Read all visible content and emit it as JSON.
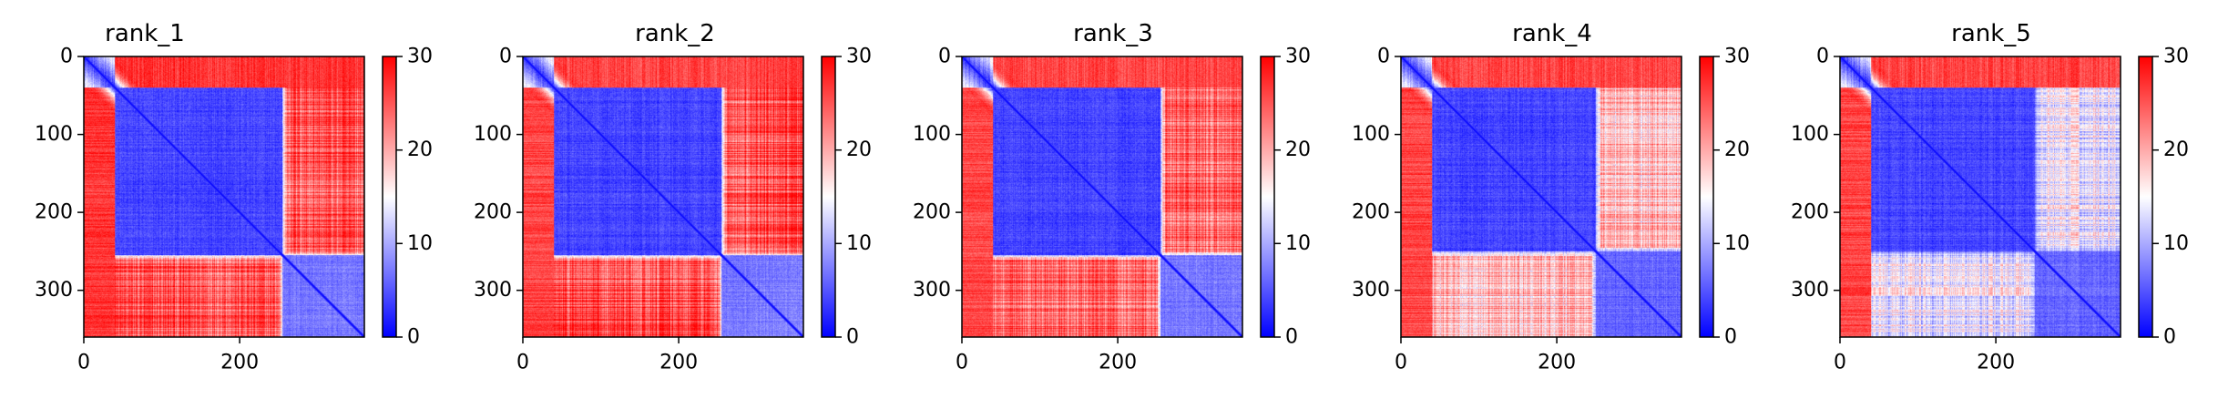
{
  "figure": {
    "colormap": "bwr",
    "colors": {
      "low": "#0000ff",
      "mid": "#ffffff",
      "high": "#ff0000",
      "axis": "#000000"
    }
  },
  "chart_data": [
    {
      "type": "heatmap",
      "title": "rank_1",
      "xlabel": "",
      "ylabel": "",
      "n": 360,
      "xlim": [
        0,
        360
      ],
      "ylim": [
        360,
        0
      ],
      "x_ticks": [
        0,
        200
      ],
      "y_ticks": [
        0,
        100,
        200,
        300
      ],
      "colorbar": {
        "min": 0,
        "max": 30,
        "ticks": [
          0,
          10,
          20,
          30
        ]
      },
      "domain_boundaries": [
        40,
        255
      ],
      "blocks": {
        "core": 4,
        "tail": 7,
        "cross_core": 25,
        "core_tail": 27,
        "cross_tail": 25
      },
      "grid": false
    },
    {
      "type": "heatmap",
      "title": "rank_2",
      "xlabel": "",
      "ylabel": "",
      "n": 360,
      "xlim": [
        0,
        360
      ],
      "ylim": [
        360,
        0
      ],
      "x_ticks": [
        0,
        200
      ],
      "y_ticks": [
        0,
        100,
        200,
        300
      ],
      "colorbar": {
        "min": 0,
        "max": 30,
        "ticks": [
          0,
          10,
          20,
          30
        ]
      },
      "domain_boundaries": [
        40,
        255
      ],
      "blocks": {
        "core": 4,
        "tail": 7,
        "cross_core": 25,
        "core_tail": 26,
        "cross_tail": 25
      },
      "grid": false
    },
    {
      "type": "heatmap",
      "title": "rank_3",
      "xlabel": "",
      "ylabel": "",
      "n": 360,
      "xlim": [
        0,
        360
      ],
      "ylim": [
        360,
        0
      ],
      "x_ticks": [
        0,
        200
      ],
      "y_ticks": [
        0,
        100,
        200,
        300
      ],
      "colorbar": {
        "min": 0,
        "max": 30,
        "ticks": [
          0,
          10,
          20,
          30
        ]
      },
      "domain_boundaries": [
        40,
        255
      ],
      "blocks": {
        "core": 4,
        "tail": 7,
        "cross_core": 24,
        "core_tail": 26,
        "cross_tail": 24
      },
      "grid": false
    },
    {
      "type": "heatmap",
      "title": "rank_4",
      "xlabel": "",
      "ylabel": "",
      "n": 360,
      "xlim": [
        0,
        360
      ],
      "ylim": [
        360,
        0
      ],
      "x_ticks": [
        0,
        200
      ],
      "y_ticks": [
        0,
        100,
        200,
        300
      ],
      "colorbar": {
        "min": 0,
        "max": 30,
        "ticks": [
          0,
          10,
          20,
          30
        ]
      },
      "domain_boundaries": [
        40,
        250
      ],
      "blocks": {
        "core": 4,
        "tail": 6,
        "cross_core": 19,
        "core_tail": 26,
        "cross_tail": 25
      },
      "grid": false
    },
    {
      "type": "heatmap",
      "title": "rank_5",
      "xlabel": "",
      "ylabel": "",
      "n": 360,
      "xlim": [
        0,
        360
      ],
      "ylim": [
        360,
        0
      ],
      "x_ticks": [
        0,
        200
      ],
      "y_ticks": [
        0,
        100,
        200,
        300
      ],
      "colorbar": {
        "min": 0,
        "max": 30,
        "ticks": [
          0,
          10,
          20,
          30
        ]
      },
      "domain_boundaries": [
        40,
        250
      ],
      "blocks": {
        "core": 4,
        "tail": 6,
        "cross_core": 14,
        "core_tail": 26,
        "cross_tail": 25
      },
      "grid": false
    }
  ]
}
